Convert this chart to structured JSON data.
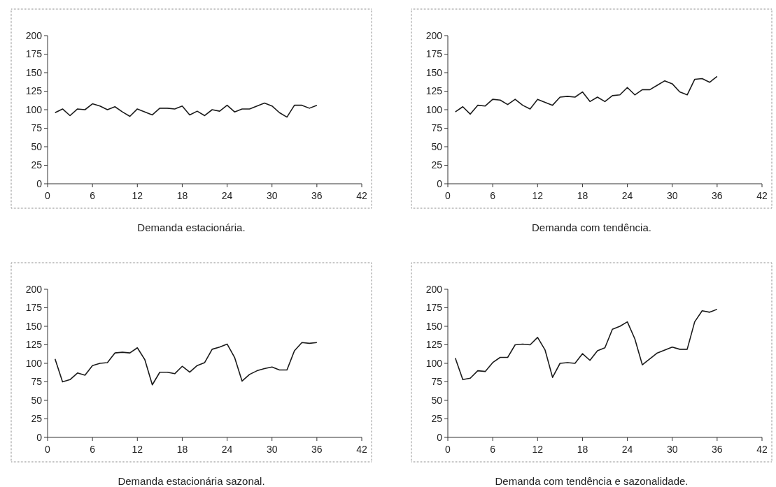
{
  "chart_data": [
    {
      "type": "line",
      "title": "Demanda estacionária.",
      "color": "#1a1a1a",
      "x": [
        1,
        2,
        3,
        4,
        5,
        6,
        7,
        8,
        9,
        10,
        11,
        12,
        13,
        14,
        15,
        16,
        17,
        18,
        19,
        20,
        21,
        22,
        23,
        24,
        25,
        26,
        27,
        28,
        29,
        30,
        31,
        32,
        33,
        34,
        35,
        36
      ],
      "values": [
        96,
        101,
        92,
        101,
        100,
        108,
        105,
        100,
        104,
        97,
        91,
        101,
        97,
        93,
        102,
        102,
        101,
        105,
        93,
        98,
        92,
        100,
        98,
        106,
        97,
        101,
        101,
        105,
        109,
        105,
        96,
        90,
        106,
        106,
        102,
        106
      ],
      "xlim": [
        0,
        42
      ],
      "xticks": [
        0,
        6,
        12,
        18,
        24,
        30,
        36,
        42
      ],
      "ylim": [
        0,
        200
      ],
      "yticks": [
        0,
        25,
        50,
        75,
        100,
        125,
        150,
        175,
        200
      ],
      "grid": false
    },
    {
      "type": "line",
      "title": "Demanda com tendência.",
      "color": "#1a1a1a",
      "x": [
        1,
        2,
        3,
        4,
        5,
        6,
        7,
        8,
        9,
        10,
        11,
        12,
        13,
        14,
        15,
        16,
        17,
        18,
        19,
        20,
        21,
        22,
        23,
        24,
        25,
        26,
        27,
        28,
        29,
        30,
        31,
        32,
        33,
        34,
        35,
        36
      ],
      "values": [
        97,
        104,
        94,
        106,
        105,
        114,
        113,
        107,
        114,
        106,
        101,
        114,
        110,
        106,
        117,
        118,
        117,
        124,
        111,
        117,
        111,
        119,
        120,
        130,
        120,
        127,
        127,
        133,
        139,
        135,
        124,
        120,
        141,
        142,
        137,
        145
      ],
      "xlim": [
        0,
        42
      ],
      "xticks": [
        0,
        6,
        12,
        18,
        24,
        30,
        36,
        42
      ],
      "ylim": [
        0,
        200
      ],
      "yticks": [
        0,
        25,
        50,
        75,
        100,
        125,
        150,
        175,
        200
      ],
      "grid": false
    },
    {
      "type": "line",
      "title": "Demanda estacionária sazonal.",
      "color": "#1a1a1a",
      "x": [
        1,
        2,
        3,
        4,
        5,
        6,
        7,
        8,
        9,
        10,
        11,
        12,
        13,
        14,
        15,
        16,
        17,
        18,
        19,
        20,
        21,
        22,
        23,
        24,
        25,
        26,
        27,
        28,
        29,
        30,
        31,
        32,
        33,
        34,
        35,
        36
      ],
      "values": [
        106,
        75,
        78,
        87,
        84,
        97,
        100,
        101,
        114,
        115,
        114,
        121,
        105,
        71,
        88,
        88,
        86,
        96,
        88,
        97,
        101,
        119,
        122,
        126,
        108,
        76,
        85,
        90,
        93,
        95,
        91,
        91,
        117,
        128,
        127,
        128
      ],
      "xlim": [
        0,
        42
      ],
      "xticks": [
        0,
        6,
        12,
        18,
        24,
        30,
        36,
        42
      ],
      "ylim": [
        0,
        200
      ],
      "yticks": [
        0,
        25,
        50,
        75,
        100,
        125,
        150,
        175,
        200
      ],
      "grid": false
    },
    {
      "type": "line",
      "title": "Demanda com tendência e sazonalidade.",
      "color": "#1a1a1a",
      "x": [
        1,
        2,
        3,
        4,
        5,
        6,
        7,
        8,
        9,
        10,
        11,
        12,
        13,
        14,
        15,
        16,
        17,
        18,
        19,
        20,
        21,
        22,
        23,
        24,
        25,
        26,
        27,
        28,
        29,
        30,
        31,
        32,
        33,
        34,
        35,
        36
      ],
      "values": [
        107,
        78,
        80,
        90,
        89,
        101,
        108,
        108,
        125,
        126,
        125,
        135,
        118,
        81,
        100,
        101,
        100,
        113,
        104,
        117,
        121,
        146,
        150,
        156,
        133,
        98,
        106,
        114,
        118,
        122,
        119,
        119,
        156,
        171,
        169,
        173
      ],
      "xlim": [
        0,
        42
      ],
      "xticks": [
        0,
        6,
        12,
        18,
        24,
        30,
        36,
        42
      ],
      "ylim": [
        0,
        200
      ],
      "yticks": [
        0,
        25,
        50,
        75,
        100,
        125,
        150,
        175,
        200
      ],
      "grid": false
    }
  ]
}
